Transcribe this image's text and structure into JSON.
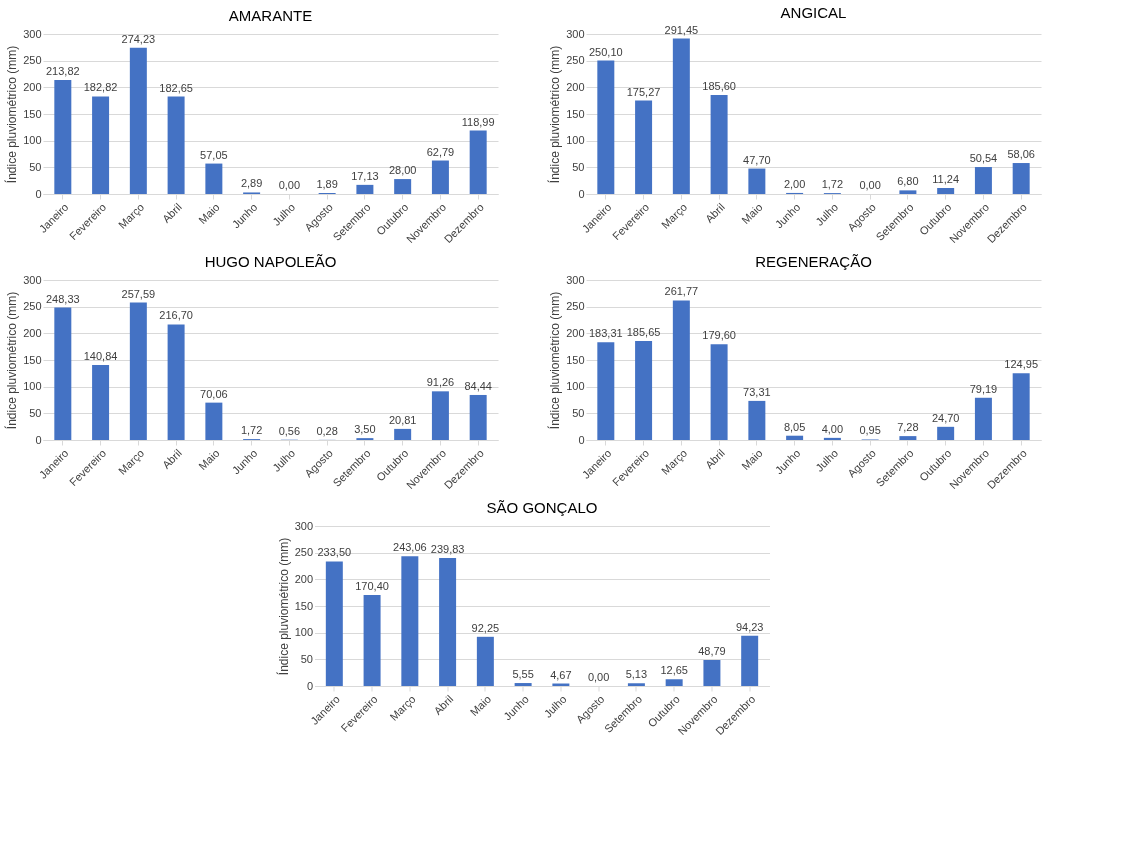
{
  "chart_data": [
    {
      "type": "bar",
      "title": "AMARANTE",
      "ylabel": "Índice pluviométrico  (mm)",
      "categories": [
        "Janeiro",
        "Fevereiro",
        "Março",
        "Abril",
        "Maio",
        "Junho",
        "Julho",
        "Agosto",
        "Setembro",
        "Outubro",
        "Novembro",
        "Dezembro"
      ],
      "values": [
        213.82,
        182.82,
        274.23,
        182.65,
        57.05,
        2.89,
        0.0,
        1.89,
        17.13,
        28.0,
        62.79,
        118.99
      ],
      "value_labels": [
        "213,82",
        "182,82",
        "274,23",
        "182,65",
        "57,05",
        "2,89",
        "0,00",
        "1,89",
        "17,13",
        "28,00",
        "62,79",
        "118,99"
      ],
      "color": "#4472c4",
      "ylim": [
        0,
        300
      ],
      "yticks": [
        0,
        50,
        100,
        150,
        200,
        250,
        300
      ],
      "grid": "y"
    },
    {
      "type": "bar",
      "title": "ANGICAL",
      "ylabel": "Índice pluviométrico  (mm)",
      "categories": [
        "Janeiro",
        "Fevereiro",
        "Março",
        "Abril",
        "Maio",
        "Junho",
        "Julho",
        "Agosto",
        "Setembro",
        "Outubro",
        "Novembro",
        "Dezembro"
      ],
      "values": [
        250.1,
        175.27,
        291.45,
        185.6,
        47.7,
        2.0,
        1.72,
        0.0,
        6.8,
        11.24,
        50.54,
        58.06
      ],
      "value_labels": [
        "250,10",
        "175,27",
        "291,45",
        "185,60",
        "47,70",
        "2,00",
        "1,72",
        "0,00",
        "6,80",
        "11,24",
        "50,54",
        "58,06"
      ],
      "color": "#4472c4",
      "ylim": [
        0,
        300
      ],
      "yticks": [
        0,
        50,
        100,
        150,
        200,
        250,
        300
      ],
      "grid": "y"
    },
    {
      "type": "bar",
      "title": "HUGO NAPOLEÃO",
      "ylabel": "Índice pluviométrico  (mm)",
      "categories": [
        "Janeiro",
        "Fevereiro",
        "Março",
        "Abril",
        "Maio",
        "Junho",
        "Julho",
        "Agosto",
        "Setembro",
        "Outubro",
        "Novembro",
        "Dezembro"
      ],
      "values": [
        248.33,
        140.84,
        257.59,
        216.7,
        70.06,
        1.72,
        0.56,
        0.28,
        3.5,
        20.81,
        91.26,
        84.44
      ],
      "value_labels": [
        "248,33",
        "140,84",
        "257,59",
        "216,70",
        "70,06",
        "1,72",
        "0,56",
        "0,28",
        "3,50",
        "20,81",
        "91,26",
        "84,44"
      ],
      "color": "#4472c4",
      "ylim": [
        0,
        300
      ],
      "yticks": [
        0,
        50,
        100,
        150,
        200,
        250,
        300
      ],
      "grid": "y"
    },
    {
      "type": "bar",
      "title": "REGENERAÇÃO",
      "ylabel": "Índice pluviométrico  (mm)",
      "categories": [
        "Janeiro",
        "Fevereiro",
        "Março",
        "Abril",
        "Maio",
        "Junho",
        "Julho",
        "Agosto",
        "Setembro",
        "Outubro",
        "Novembro",
        "Dezembro"
      ],
      "values": [
        183.31,
        185.65,
        261.77,
        179.6,
        73.31,
        8.05,
        4.0,
        0.95,
        7.28,
        24.7,
        79.19,
        124.95
      ],
      "value_labels": [
        "183,31",
        "185,65",
        "261,77",
        "179,60",
        "73,31",
        "8,05",
        "4,00",
        "0,95",
        "7,28",
        "24,70",
        "79,19",
        "124,95"
      ],
      "color": "#4472c4",
      "ylim": [
        0,
        300
      ],
      "yticks": [
        0,
        50,
        100,
        150,
        200,
        250,
        300
      ],
      "grid": "y"
    },
    {
      "type": "bar",
      "title": "SÃO GONÇALO",
      "ylabel": "Índice pluviométrico  (mm)",
      "categories": [
        "Janeiro",
        "Fevereiro",
        "Março",
        "Abril",
        "Maio",
        "Junho",
        "Julho",
        "Agosto",
        "Setembro",
        "Outubro",
        "Novembro",
        "Dezembro"
      ],
      "values": [
        233.5,
        170.4,
        243.06,
        239.83,
        92.25,
        5.55,
        4.67,
        0.0,
        5.13,
        12.65,
        48.79,
        94.23
      ],
      "value_labels": [
        "233,50",
        "170,40",
        "243,06",
        "239,83",
        "92,25",
        "5,55",
        "4,67",
        "0,00",
        "5,13",
        "12,65",
        "48,79",
        "94,23"
      ],
      "color": "#4472c4",
      "ylim": [
        0,
        300
      ],
      "yticks": [
        0,
        50,
        100,
        150,
        200,
        250,
        300
      ],
      "grid": "y"
    }
  ]
}
